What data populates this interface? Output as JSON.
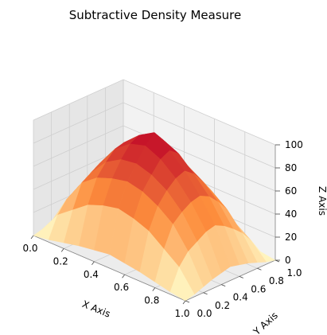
{
  "chart_data": {
    "type": "surface3d",
    "title": "Subtractive Density Measure",
    "xlabel": "X Axis",
    "ylabel": "Y Axis",
    "zlabel": "Z Axis",
    "xlim": [
      0,
      1
    ],
    "ylim": [
      0,
      1
    ],
    "zlim": [
      0,
      100
    ],
    "x_ticks": [
      "0.0",
      "0.2",
      "0.4",
      "0.6",
      "0.8",
      "1.0"
    ],
    "y_ticks": [
      "0.0",
      "0.2",
      "0.4",
      "0.6",
      "0.8",
      "1.0"
    ],
    "z_ticks": [
      "0",
      "20",
      "40",
      "60",
      "80",
      "100"
    ],
    "grid": true,
    "colormap": "YlOrRd",
    "colors": {
      "low": "#ffffcc",
      "mid": "#fd8d3c",
      "high": "#bd0026",
      "pane_back": "#f2f2f2",
      "pane_side": "#e6e6e6",
      "pane_floor": "#ececec",
      "grid": "#cfcfcf"
    },
    "surface": {
      "description": "Density surface: near 0 at the domain edges, rising toward a broad central ridge with peaks near 90-100",
      "x": [
        0.0,
        0.1,
        0.2,
        0.3,
        0.4,
        0.5,
        0.6,
        0.7,
        0.8,
        0.9,
        1.0
      ],
      "y": [
        0.0,
        0.1,
        0.2,
        0.3,
        0.4,
        0.5,
        0.6,
        0.7,
        0.8,
        0.9,
        1.0
      ],
      "z": [
        [
          0,
          2,
          5,
          8,
          10,
          12,
          10,
          8,
          5,
          2,
          0
        ],
        [
          2,
          20,
          30,
          40,
          45,
          48,
          45,
          40,
          30,
          20,
          2
        ],
        [
          5,
          30,
          50,
          60,
          65,
          68,
          65,
          58,
          48,
          30,
          5
        ],
        [
          8,
          35,
          55,
          70,
          78,
          80,
          76,
          68,
          55,
          35,
          8
        ],
        [
          10,
          40,
          60,
          78,
          88,
          92,
          86,
          75,
          60,
          40,
          10
        ],
        [
          12,
          42,
          62,
          80,
          92,
          100,
          90,
          78,
          62,
          42,
          12
        ],
        [
          10,
          38,
          58,
          75,
          85,
          90,
          84,
          72,
          58,
          38,
          10
        ],
        [
          8,
          32,
          52,
          65,
          72,
          75,
          70,
          62,
          50,
          32,
          8
        ],
        [
          5,
          25,
          42,
          52,
          58,
          60,
          56,
          50,
          40,
          25,
          5
        ],
        [
          2,
          15,
          25,
          32,
          35,
          38,
          35,
          30,
          24,
          15,
          2
        ],
        [
          0,
          2,
          5,
          8,
          10,
          12,
          10,
          8,
          5,
          2,
          0
        ]
      ]
    }
  }
}
